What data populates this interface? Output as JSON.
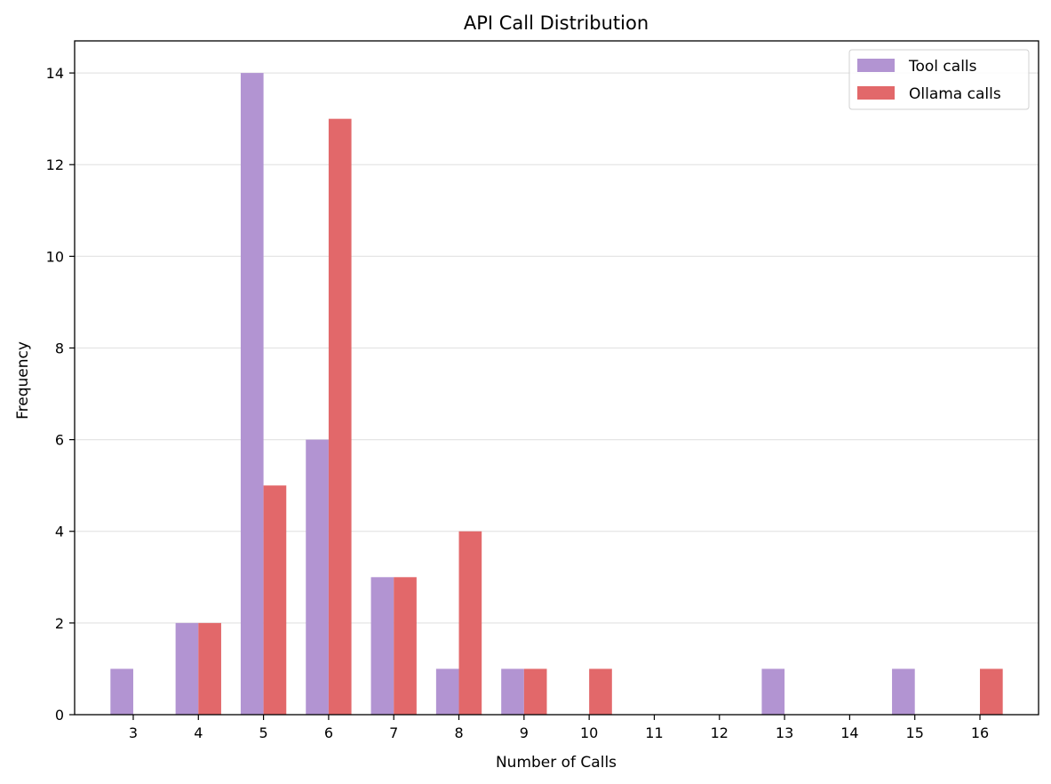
{
  "chart_data": {
    "type": "bar",
    "title": "API Call Distribution",
    "xlabel": "Number of Calls",
    "ylabel": "Frequency",
    "categories": [
      3,
      4,
      5,
      6,
      7,
      8,
      9,
      10,
      11,
      12,
      13,
      14,
      15,
      16
    ],
    "series": [
      {
        "name": "Tool calls",
        "color": "#b294d2",
        "values": [
          1,
          2,
          14,
          6,
          3,
          1,
          1,
          0,
          0,
          0,
          1,
          0,
          1,
          0
        ]
      },
      {
        "name": "Ollama calls",
        "color": "#e2686a",
        "values": [
          0,
          2,
          5,
          13,
          3,
          4,
          1,
          1,
          0,
          0,
          0,
          0,
          0,
          1
        ]
      }
    ],
    "ylim": [
      0,
      14.7
    ],
    "yticks": [
      0,
      2,
      4,
      6,
      8,
      10,
      12,
      14
    ],
    "xlim": [
      2.1,
      16.9
    ],
    "grid": "y",
    "legend": "top-right"
  }
}
